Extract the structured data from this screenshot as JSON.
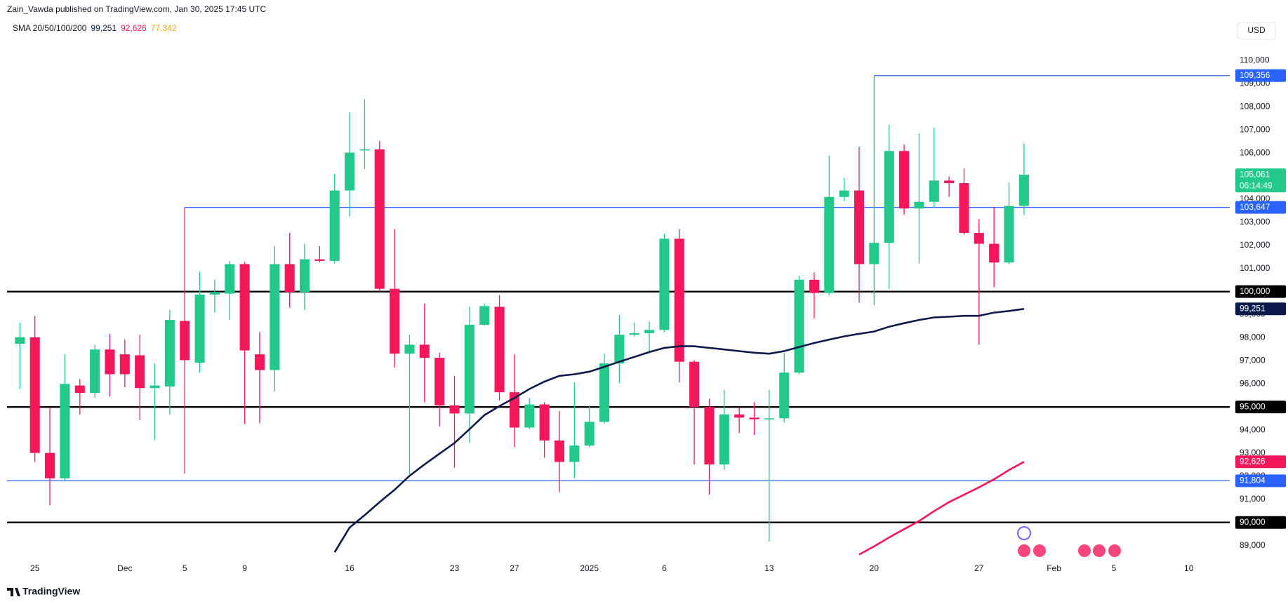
{
  "header": "Zain_Vawda published on TradingView.com, Jan 30, 2025 17:45 UTC",
  "currency": "USD",
  "footer": "TradingView",
  "chart_data": {
    "type": "candlestick",
    "up_color": "#22c98a",
    "down_color": "#f5175a",
    "open": [
      97740,
      98020,
      93010,
      91910,
      95930,
      95610,
      97490,
      97280,
      97240,
      95820,
      95890,
      98730,
      96920,
      99870,
      99910,
      101190,
      97280,
      96600,
      101190,
      99980,
      101400,
      101330,
      104380,
      106130,
      106160,
      100120,
      97310,
      97700,
      97130,
      95070,
      94720,
      98560,
      99340,
      95640,
      94110,
      95110,
      93550,
      92620,
      93330,
      94360,
      96890,
      98130,
      98200,
      98340,
      102290,
      96960,
      95000,
      92510,
      94680,
      94540,
      94470,
      94510,
      96490,
      100510,
      99940,
      104100,
      104380,
      101190,
      102110,
      106090,
      103600,
      103890,
      104810,
      104700,
      102540,
      102070,
      101260,
      103710
    ],
    "high": [
      98660,
      98950,
      94970,
      97280,
      96210,
      97700,
      98170,
      97920,
      98130,
      96890,
      99200,
      103647,
      100870,
      100510,
      101330,
      101290,
      98240,
      101970,
      102540,
      102070,
      101970,
      105100,
      107760,
      108330,
      106520,
      102710,
      98130,
      99480,
      97350,
      96350,
      99340,
      99480,
      99840,
      97280,
      95390,
      95210,
      94820,
      96070,
      95070,
      97310,
      98980,
      98660,
      98700,
      102500,
      102710,
      97030,
      95360,
      95750,
      94970,
      95210,
      95750,
      97350,
      100690,
      100830,
      105880,
      104920,
      106270,
      109356,
      107230,
      106370,
      106840,
      107090,
      104990,
      105340,
      103140,
      103670,
      104740,
      106410
    ],
    "low": [
      95780,
      92620,
      90740,
      91800,
      94680,
      95390,
      95460,
      95850,
      94430,
      93580,
      94680,
      92120,
      96500,
      99090,
      98770,
      94260,
      94290,
      95680,
      99300,
      99200,
      101260,
      101220,
      103250,
      105310,
      100010,
      96710,
      92090,
      95210,
      94150,
      92370,
      93440,
      98520,
      95290,
      93260,
      94040,
      92800,
      91310,
      91910,
      93260,
      94290,
      96030,
      98060,
      97310,
      98240,
      96070,
      92510,
      91200,
      92270,
      93870,
      93790,
      89170,
      94330,
      96420,
      98840,
      99840,
      103920,
      99520,
      99410,
      100120,
      103320,
      101220,
      103640,
      104100,
      102470,
      97700,
      100190,
      101190,
      103320
    ],
    "close": [
      98025,
      93010,
      91910,
      96000,
      95610,
      97490,
      96420,
      96420,
      95820,
      95930,
      98770,
      97030,
      99870,
      99980,
      101190,
      97450,
      96600,
      101190,
      99980,
      101400,
      101330,
      104380,
      106020,
      106160,
      100120,
      97310,
      97700,
      97130,
      95070,
      94720,
      98560,
      99370,
      95640,
      94110,
      95110,
      93550,
      92620,
      93330,
      94360,
      96890,
      98130,
      98200,
      98340,
      102290,
      96960,
      95000,
      92510,
      94680,
      94540,
      94470,
      94510,
      96490,
      100510,
      99940,
      104100,
      104380,
      101190,
      102110,
      106090,
      103600,
      103890,
      104810,
      104700,
      102540,
      102070,
      101260,
      103710,
      105061
    ],
    "last_label": "105,061",
    "countdown": "06:14:49",
    "lines": [
      {
        "color": "#0c1a4b",
        "values": [
          null,
          null,
          null,
          null,
          null,
          null,
          null,
          null,
          null,
          null,
          null,
          null,
          null,
          null,
          null,
          null,
          null,
          null,
          null,
          null,
          null,
          88710,
          89780,
          90310,
          90880,
          91410,
          92020,
          92510,
          92980,
          93440,
          94040,
          94650,
          95040,
          95390,
          95780,
          96100,
          96350,
          96420,
          96530,
          96740,
          96960,
          97170,
          97380,
          97560,
          97630,
          97630,
          97560,
          97490,
          97420,
          97350,
          97310,
          97420,
          97600,
          97770,
          97920,
          98060,
          98170,
          98270,
          98480,
          98630,
          98770,
          98880,
          98910,
          98950,
          98950,
          99090,
          99160,
          99251
        ]
      },
      {
        "color": "#f5175a",
        "values": [
          null,
          null,
          null,
          null,
          null,
          null,
          null,
          null,
          null,
          null,
          null,
          null,
          null,
          null,
          null,
          null,
          null,
          null,
          null,
          null,
          null,
          null,
          null,
          null,
          null,
          null,
          null,
          null,
          null,
          null,
          null,
          null,
          null,
          null,
          null,
          null,
          null,
          null,
          null,
          null,
          null,
          null,
          null,
          null,
          null,
          null,
          null,
          null,
          null,
          null,
          null,
          null,
          null,
          null,
          null,
          null,
          88610,
          88960,
          89350,
          89710,
          90060,
          90490,
          90880,
          91200,
          91520,
          91870,
          92270,
          92626
        ]
      }
    ],
    "indicator": {
      "label": "SMA 20/50/100/200",
      "values": [
        99251,
        92626,
        77342
      ],
      "value_labels": [
        "99,251",
        "92,626",
        "77,342"
      ],
      "colors": [
        "#0c1a4b",
        "#f5175a",
        "#f5a623"
      ]
    },
    "levels": [
      {
        "value": 109356,
        "label": "109,356",
        "color": "#2962ff"
      },
      {
        "value": 103647,
        "label": "103,647",
        "color": "#2962ff"
      },
      {
        "value": 100000,
        "label": "100,000",
        "color": "#000000"
      },
      {
        "value": 95000,
        "label": "95,000",
        "color": "#000000"
      },
      {
        "value": 91804,
        "label": "91,804",
        "color": "#2962ff"
      },
      {
        "value": 90000,
        "label": "90,000",
        "color": "#000000"
      }
    ],
    "ylim": [
      88320,
      111780
    ],
    "yticks": [
      {
        "value": 89000,
        "label": "89,000"
      },
      {
        "value": 90000,
        "label": "90,000"
      },
      {
        "value": 91000,
        "label": "91,000"
      },
      {
        "value": 92000,
        "label": "92,000"
      },
      {
        "value": 93000,
        "label": "93,000"
      },
      {
        "value": 94000,
        "label": "94,000"
      },
      {
        "value": 95000,
        "label": "95,000"
      },
      {
        "value": 96000,
        "label": "96,000"
      },
      {
        "value": 97000,
        "label": "97,000"
      },
      {
        "value": 98000,
        "label": "98,000"
      },
      {
        "value": 99000,
        "label": "99,000"
      },
      {
        "value": 100000,
        "label": "100,000"
      },
      {
        "value": 101000,
        "label": "101,000"
      },
      {
        "value": 102000,
        "label": "102,000"
      },
      {
        "value": 103000,
        "label": "103,000"
      },
      {
        "value": 104000,
        "label": "104,000"
      },
      {
        "value": 105000,
        "label": "105,000"
      },
      {
        "value": 106000,
        "label": "106,000"
      },
      {
        "value": 107000,
        "label": "107,000"
      },
      {
        "value": 108000,
        "label": "108,000"
      },
      {
        "value": 109000,
        "label": "109,000"
      },
      {
        "value": 110000,
        "label": "110,000"
      }
    ],
    "xlim": [
      -0.86,
      80.73
    ],
    "xticks": [
      {
        "value": 1,
        "label": "25"
      },
      {
        "value": 7,
        "label": "Dec"
      },
      {
        "value": 11,
        "label": "5"
      },
      {
        "value": 15,
        "label": "9"
      },
      {
        "value": 22,
        "label": "16"
      },
      {
        "value": 29,
        "label": "23"
      },
      {
        "value": 33,
        "label": "27"
      },
      {
        "value": 38,
        "label": "2025"
      },
      {
        "value": 43,
        "label": "6"
      },
      {
        "value": 50,
        "label": "13"
      },
      {
        "value": 57,
        "label": "20"
      },
      {
        "value": 64,
        "label": "27"
      },
      {
        "value": 69,
        "label": "Feb"
      },
      {
        "value": 73,
        "label": "5"
      },
      {
        "value": 78,
        "label": "10"
      }
    ],
    "grid": false
  }
}
